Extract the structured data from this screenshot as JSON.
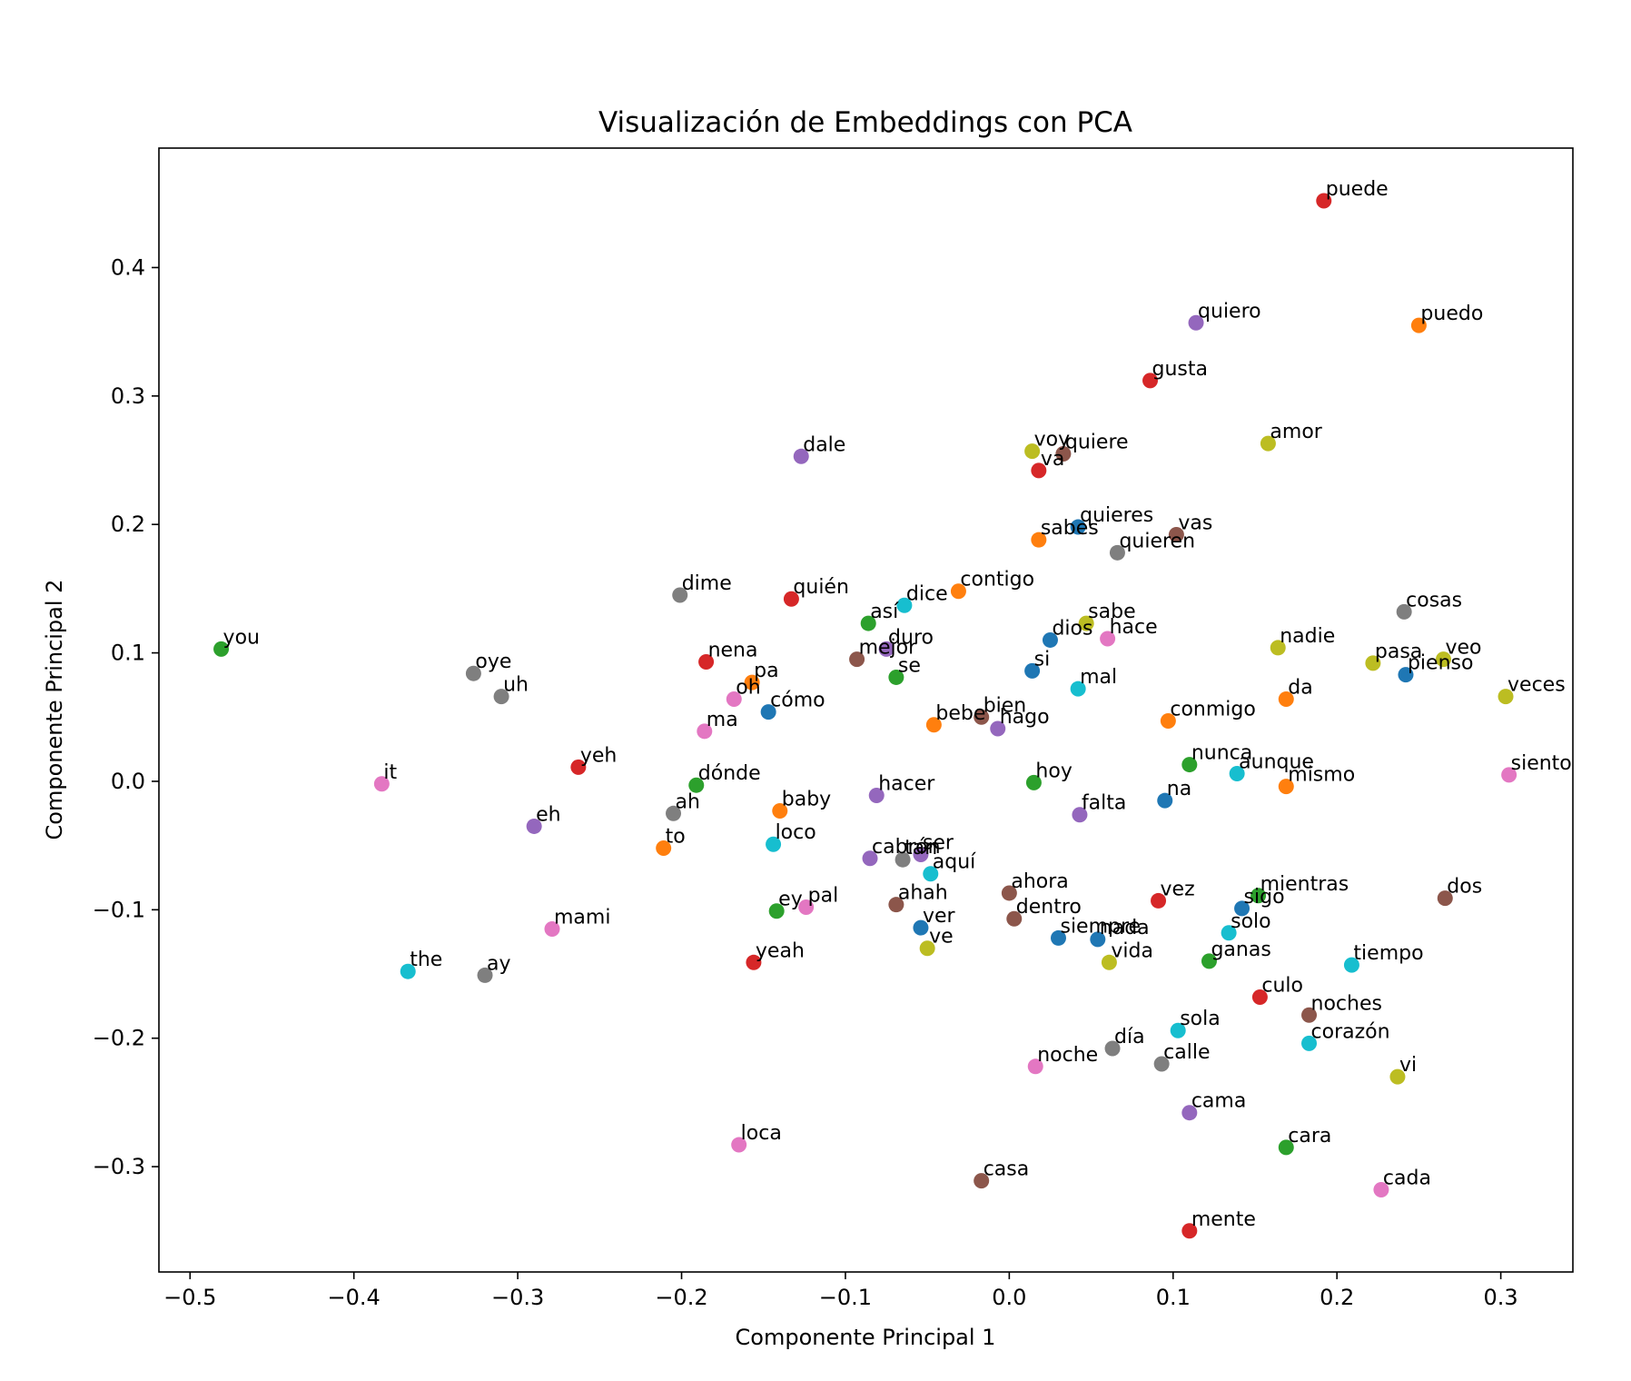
{
  "chart_data": {
    "type": "scatter",
    "title": "Visualización de Embeddings con PCA",
    "xlabel": "Componente Principal 1",
    "ylabel": "Componente Principal 2",
    "xlim": [
      -0.519,
      0.344
    ],
    "ylim": [
      -0.382,
      0.493
    ],
    "grid": false,
    "legend": "none",
    "xticks": [
      -0.5,
      -0.4,
      -0.3,
      -0.2,
      -0.1,
      0.0,
      0.1,
      0.2,
      0.3
    ],
    "yticks": [
      -0.3,
      -0.2,
      -0.1,
      0.0,
      0.1,
      0.2,
      0.3,
      0.4
    ],
    "xtick_labels": [
      "−0.5",
      "−0.4",
      "−0.3",
      "−0.2",
      "−0.1",
      "0.0",
      "0.1",
      "0.2",
      "0.3"
    ],
    "ytick_labels": [
      "−0.3",
      "−0.2",
      "−0.1",
      "0.0",
      "0.1",
      "0.2",
      "0.3",
      "0.4"
    ],
    "palette": [
      "#1f77b4",
      "#ff7f0e",
      "#2ca02c",
      "#d62728",
      "#9467bd",
      "#8c564b",
      "#e377c2",
      "#7f7f7f",
      "#bcbd22",
      "#17becf"
    ],
    "points": [
      {
        "label": "puede",
        "x": 0.192,
        "y": 0.452,
        "color": "#d62728"
      },
      {
        "label": "quiero",
        "x": 0.114,
        "y": 0.357,
        "color": "#9467bd"
      },
      {
        "label": "puedo",
        "x": 0.25,
        "y": 0.355,
        "color": "#ff7f0e"
      },
      {
        "label": "gusta",
        "x": 0.086,
        "y": 0.312,
        "color": "#d62728"
      },
      {
        "label": "amor",
        "x": 0.158,
        "y": 0.263,
        "color": "#bcbd22"
      },
      {
        "label": "dale",
        "x": -0.127,
        "y": 0.253,
        "color": "#9467bd"
      },
      {
        "label": "voy",
        "x": 0.014,
        "y": 0.257,
        "color": "#bcbd22"
      },
      {
        "label": "quiere",
        "x": 0.033,
        "y": 0.255,
        "color": "#8c564b"
      },
      {
        "label": "va",
        "x": 0.018,
        "y": 0.242,
        "color": "#d62728"
      },
      {
        "label": "quieres",
        "x": 0.042,
        "y": 0.198,
        "color": "#1f77b4"
      },
      {
        "label": "vas",
        "x": 0.102,
        "y": 0.192,
        "color": "#8c564b"
      },
      {
        "label": "sabes",
        "x": 0.018,
        "y": 0.188,
        "color": "#ff7f0e"
      },
      {
        "label": "quieren",
        "x": 0.066,
        "y": 0.178,
        "color": "#7f7f7f"
      },
      {
        "label": "dime",
        "x": -0.201,
        "y": 0.145,
        "color": "#7f7f7f"
      },
      {
        "label": "quién",
        "x": -0.133,
        "y": 0.142,
        "color": "#d62728"
      },
      {
        "label": "contigo",
        "x": -0.031,
        "y": 0.148,
        "color": "#ff7f0e"
      },
      {
        "label": "dice",
        "x": -0.064,
        "y": 0.137,
        "color": "#17becf"
      },
      {
        "label": "cosas",
        "x": 0.241,
        "y": 0.132,
        "color": "#7f7f7f"
      },
      {
        "label": "así",
        "x": -0.086,
        "y": 0.123,
        "color": "#2ca02c"
      },
      {
        "label": "sabe",
        "x": 0.047,
        "y": 0.123,
        "color": "#bcbd22"
      },
      {
        "label": "you",
        "x": -0.481,
        "y": 0.103,
        "color": "#2ca02c"
      },
      {
        "label": "duro",
        "x": -0.075,
        "y": 0.103,
        "color": "#9467bd"
      },
      {
        "label": "dios",
        "x": 0.025,
        "y": 0.11,
        "color": "#1f77b4"
      },
      {
        "label": "hace",
        "x": 0.06,
        "y": 0.111,
        "color": "#e377c2"
      },
      {
        "label": "nadie",
        "x": 0.164,
        "y": 0.104,
        "color": "#bcbd22"
      },
      {
        "label": "nena",
        "x": -0.185,
        "y": 0.093,
        "color": "#d62728"
      },
      {
        "label": "mejor",
        "x": -0.093,
        "y": 0.095,
        "color": "#8c564b"
      },
      {
        "label": "pasa",
        "x": 0.222,
        "y": 0.092,
        "color": "#bcbd22"
      },
      {
        "label": "veo",
        "x": 0.265,
        "y": 0.095,
        "color": "#bcbd22"
      },
      {
        "label": "oye",
        "x": -0.327,
        "y": 0.084,
        "color": "#7f7f7f"
      },
      {
        "label": "si",
        "x": 0.014,
        "y": 0.086,
        "color": "#1f77b4"
      },
      {
        "label": "pienso",
        "x": 0.242,
        "y": 0.083,
        "color": "#1f77b4"
      },
      {
        "label": "se",
        "x": -0.069,
        "y": 0.081,
        "color": "#2ca02c"
      },
      {
        "label": "pa",
        "x": -0.157,
        "y": 0.077,
        "color": "#ff7f0e"
      },
      {
        "label": "mal",
        "x": 0.042,
        "y": 0.072,
        "color": "#17becf"
      },
      {
        "label": "uh",
        "x": -0.31,
        "y": 0.066,
        "color": "#7f7f7f"
      },
      {
        "label": "veces",
        "x": 0.303,
        "y": 0.066,
        "color": "#bcbd22"
      },
      {
        "label": "oh",
        "x": -0.168,
        "y": 0.064,
        "color": "#e377c2"
      },
      {
        "label": "da",
        "x": 0.169,
        "y": 0.064,
        "color": "#ff7f0e"
      },
      {
        "label": "cómo",
        "x": -0.147,
        "y": 0.054,
        "color": "#1f77b4"
      },
      {
        "label": "bien",
        "x": -0.017,
        "y": 0.05,
        "color": "#8c564b"
      },
      {
        "label": "conmigo",
        "x": 0.097,
        "y": 0.047,
        "color": "#ff7f0e"
      },
      {
        "label": "bebe",
        "x": -0.046,
        "y": 0.044,
        "color": "#ff7f0e"
      },
      {
        "label": "hago",
        "x": -0.007,
        "y": 0.041,
        "color": "#9467bd"
      },
      {
        "label": "ma",
        "x": -0.186,
        "y": 0.039,
        "color": "#e377c2"
      },
      {
        "label": "nunca",
        "x": 0.11,
        "y": 0.013,
        "color": "#2ca02c"
      },
      {
        "label": "yeh",
        "x": -0.263,
        "y": 0.011,
        "color": "#d62728"
      },
      {
        "label": "aunque",
        "x": 0.139,
        "y": 0.006,
        "color": "#17becf"
      },
      {
        "label": "siento",
        "x": 0.305,
        "y": 0.005,
        "color": "#e377c2"
      },
      {
        "label": "it",
        "x": -0.383,
        "y": -0.002,
        "color": "#e377c2"
      },
      {
        "label": "hoy",
        "x": 0.015,
        "y": -0.001,
        "color": "#2ca02c"
      },
      {
        "label": "dónde",
        "x": -0.191,
        "y": -0.003,
        "color": "#2ca02c"
      },
      {
        "label": "mismo",
        "x": 0.169,
        "y": -0.004,
        "color": "#ff7f0e"
      },
      {
        "label": "hacer",
        "x": -0.081,
        "y": -0.011,
        "color": "#9467bd"
      },
      {
        "label": "na",
        "x": 0.095,
        "y": -0.015,
        "color": "#1f77b4"
      },
      {
        "label": "baby",
        "x": -0.14,
        "y": -0.023,
        "color": "#ff7f0e"
      },
      {
        "label": "ah",
        "x": -0.205,
        "y": -0.025,
        "color": "#7f7f7f"
      },
      {
        "label": "falta",
        "x": 0.043,
        "y": -0.026,
        "color": "#9467bd"
      },
      {
        "label": "eh",
        "x": -0.29,
        "y": -0.035,
        "color": "#9467bd"
      },
      {
        "label": "loco",
        "x": -0.144,
        "y": -0.049,
        "color": "#17becf"
      },
      {
        "label": "to",
        "x": -0.211,
        "y": -0.052,
        "color": "#ff7f0e"
      },
      {
        "label": "ser",
        "x": -0.054,
        "y": -0.057,
        "color": "#9467bd"
      },
      {
        "label": "tan",
        "x": -0.065,
        "y": -0.061,
        "color": "#7f7f7f"
      },
      {
        "label": "cabrón",
        "x": -0.085,
        "y": -0.06,
        "color": "#9467bd"
      },
      {
        "label": "aquí",
        "x": -0.048,
        "y": -0.072,
        "color": "#17becf"
      },
      {
        "label": "ahora",
        "x": 0.0,
        "y": -0.087,
        "color": "#8c564b"
      },
      {
        "label": "mientras",
        "x": 0.152,
        "y": -0.089,
        "color": "#2ca02c"
      },
      {
        "label": "dos",
        "x": 0.266,
        "y": -0.091,
        "color": "#8c564b"
      },
      {
        "label": "vez",
        "x": 0.091,
        "y": -0.093,
        "color": "#d62728"
      },
      {
        "label": "ahah",
        "x": -0.069,
        "y": -0.096,
        "color": "#8c564b"
      },
      {
        "label": "pal",
        "x": -0.124,
        "y": -0.098,
        "color": "#e377c2"
      },
      {
        "label": "sigo",
        "x": 0.142,
        "y": -0.099,
        "color": "#1f77b4"
      },
      {
        "label": "ey",
        "x": -0.142,
        "y": -0.101,
        "color": "#2ca02c"
      },
      {
        "label": "dentro",
        "x": 0.003,
        "y": -0.107,
        "color": "#8c564b"
      },
      {
        "label": "mami",
        "x": -0.279,
        "y": -0.115,
        "color": "#e377c2"
      },
      {
        "label": "ver",
        "x": -0.054,
        "y": -0.114,
        "color": "#1f77b4"
      },
      {
        "label": "solo",
        "x": 0.134,
        "y": -0.118,
        "color": "#17becf"
      },
      {
        "label": "siempre",
        "x": 0.03,
        "y": -0.122,
        "color": "#1f77b4"
      },
      {
        "label": "nada",
        "x": 0.054,
        "y": -0.123,
        "color": "#1f77b4"
      },
      {
        "label": "ve",
        "x": -0.05,
        "y": -0.13,
        "color": "#bcbd22"
      },
      {
        "label": "ganas",
        "x": 0.122,
        "y": -0.14,
        "color": "#2ca02c"
      },
      {
        "label": "yeah",
        "x": -0.156,
        "y": -0.141,
        "color": "#d62728"
      },
      {
        "label": "vida",
        "x": 0.061,
        "y": -0.141,
        "color": "#bcbd22"
      },
      {
        "label": "tiempo",
        "x": 0.209,
        "y": -0.143,
        "color": "#17becf"
      },
      {
        "label": "the",
        "x": -0.367,
        "y": -0.148,
        "color": "#17becf"
      },
      {
        "label": "ay",
        "x": -0.32,
        "y": -0.151,
        "color": "#7f7f7f"
      },
      {
        "label": "culo",
        "x": 0.153,
        "y": -0.168,
        "color": "#d62728"
      },
      {
        "label": "noches",
        "x": 0.183,
        "y": -0.182,
        "color": "#8c564b"
      },
      {
        "label": "sola",
        "x": 0.103,
        "y": -0.194,
        "color": "#17becf"
      },
      {
        "label": "corazón",
        "x": 0.183,
        "y": -0.204,
        "color": "#17becf"
      },
      {
        "label": "día",
        "x": 0.063,
        "y": -0.208,
        "color": "#7f7f7f"
      },
      {
        "label": "calle",
        "x": 0.093,
        "y": -0.22,
        "color": "#7f7f7f"
      },
      {
        "label": "noche",
        "x": 0.016,
        "y": -0.222,
        "color": "#e377c2"
      },
      {
        "label": "vi",
        "x": 0.237,
        "y": -0.23,
        "color": "#bcbd22"
      },
      {
        "label": "cama",
        "x": 0.11,
        "y": -0.258,
        "color": "#9467bd"
      },
      {
        "label": "loca",
        "x": -0.165,
        "y": -0.283,
        "color": "#e377c2"
      },
      {
        "label": "cara",
        "x": 0.169,
        "y": -0.285,
        "color": "#2ca02c"
      },
      {
        "label": "casa",
        "x": -0.017,
        "y": -0.311,
        "color": "#8c564b"
      },
      {
        "label": "cada",
        "x": 0.227,
        "y": -0.318,
        "color": "#e377c2"
      },
      {
        "label": "mente",
        "x": 0.11,
        "y": -0.35,
        "color": "#d62728"
      }
    ]
  }
}
